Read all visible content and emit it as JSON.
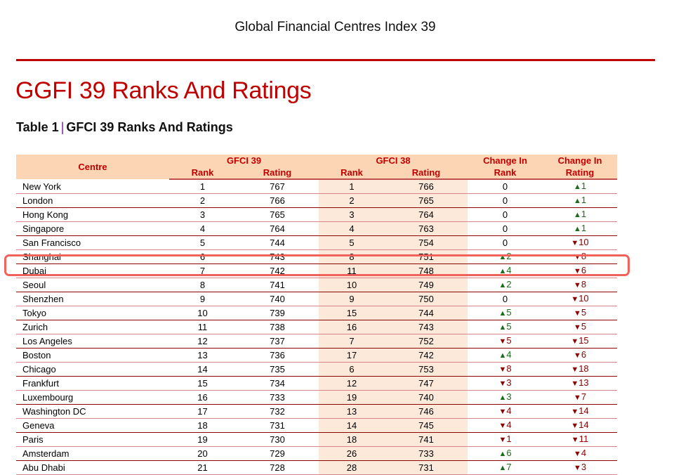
{
  "document": {
    "running_header": "Global Financial Centres Index 39",
    "page_title": "GGFI 39 Ranks And Ratings",
    "table_caption": {
      "label": "Table 1",
      "separator": "|",
      "title": "GFCI 39 Ranks And Ratings"
    }
  },
  "colors": {
    "accent_red": "#c00000",
    "header_fill": "#fcd5b5",
    "gfci38_fill": "#fde9d9",
    "up_green": "#1e6b1e",
    "down_red": "#8b0000",
    "highlight_outline": "#f0625a",
    "caption_separator": "#7b1fa2"
  },
  "table": {
    "headers": {
      "centre": "Centre",
      "gfci39": "GFCI 39",
      "gfci38": "GFCI 38",
      "rank": "Rank",
      "rating": "Rating",
      "change_in": "Change In",
      "change_rank": "Rank",
      "change_rating": "Rating"
    },
    "rows": [
      {
        "centre": "New York",
        "rank39": "1",
        "rating39": "767",
        "rank38": "1",
        "rating38": "766",
        "chg_rank": "0",
        "chg_rank_dir": "none",
        "chg_rating": "1",
        "chg_rating_dir": "up"
      },
      {
        "centre": "London",
        "rank39": "2",
        "rating39": "766",
        "rank38": "2",
        "rating38": "765",
        "chg_rank": "0",
        "chg_rank_dir": "none",
        "chg_rating": "1",
        "chg_rating_dir": "up"
      },
      {
        "centre": "Hong Kong",
        "rank39": "3",
        "rating39": "765",
        "rank38": "3",
        "rating38": "764",
        "chg_rank": "0",
        "chg_rank_dir": "none",
        "chg_rating": "1",
        "chg_rating_dir": "up"
      },
      {
        "centre": "Singapore",
        "rank39": "4",
        "rating39": "764",
        "rank38": "4",
        "rating38": "763",
        "chg_rank": "0",
        "chg_rank_dir": "none",
        "chg_rating": "1",
        "chg_rating_dir": "up"
      },
      {
        "centre": "San Francisco",
        "rank39": "5",
        "rating39": "744",
        "rank38": "5",
        "rating38": "754",
        "chg_rank": "0",
        "chg_rank_dir": "none",
        "chg_rating": "10",
        "chg_rating_dir": "down"
      },
      {
        "centre": "Shanghai",
        "rank39": "6",
        "rating39": "743",
        "rank38": "8",
        "rating38": "751",
        "chg_rank": "2",
        "chg_rank_dir": "up",
        "chg_rating": "8",
        "chg_rating_dir": "down"
      },
      {
        "centre": "Dubai",
        "rank39": "7",
        "rating39": "742",
        "rank38": "11",
        "rating38": "748",
        "chg_rank": "4",
        "chg_rank_dir": "up",
        "chg_rating": "6",
        "chg_rating_dir": "down",
        "highlighted": true
      },
      {
        "centre": "Seoul",
        "rank39": "8",
        "rating39": "741",
        "rank38": "10",
        "rating38": "749",
        "chg_rank": "2",
        "chg_rank_dir": "up",
        "chg_rating": "8",
        "chg_rating_dir": "down"
      },
      {
        "centre": "Shenzhen",
        "rank39": "9",
        "rating39": "740",
        "rank38": "9",
        "rating38": "750",
        "chg_rank": "0",
        "chg_rank_dir": "none",
        "chg_rating": "10",
        "chg_rating_dir": "down"
      },
      {
        "centre": "Tokyo",
        "rank39": "10",
        "rating39": "739",
        "rank38": "15",
        "rating38": "744",
        "chg_rank": "5",
        "chg_rank_dir": "up",
        "chg_rating": "5",
        "chg_rating_dir": "down"
      },
      {
        "centre": "Zurich",
        "rank39": "11",
        "rating39": "738",
        "rank38": "16",
        "rating38": "743",
        "chg_rank": "5",
        "chg_rank_dir": "up",
        "chg_rating": "5",
        "chg_rating_dir": "down"
      },
      {
        "centre": "Los Angeles",
        "rank39": "12",
        "rating39": "737",
        "rank38": "7",
        "rating38": "752",
        "chg_rank": "5",
        "chg_rank_dir": "down",
        "chg_rating": "15",
        "chg_rating_dir": "down"
      },
      {
        "centre": "Boston",
        "rank39": "13",
        "rating39": "736",
        "rank38": "17",
        "rating38": "742",
        "chg_rank": "4",
        "chg_rank_dir": "up",
        "chg_rating": "6",
        "chg_rating_dir": "down"
      },
      {
        "centre": "Chicago",
        "rank39": "14",
        "rating39": "735",
        "rank38": "6",
        "rating38": "753",
        "chg_rank": "8",
        "chg_rank_dir": "down",
        "chg_rating": "18",
        "chg_rating_dir": "down"
      },
      {
        "centre": "Frankfurt",
        "rank39": "15",
        "rating39": "734",
        "rank38": "12",
        "rating38": "747",
        "chg_rank": "3",
        "chg_rank_dir": "down",
        "chg_rating": "13",
        "chg_rating_dir": "down"
      },
      {
        "centre": "Luxembourg",
        "rank39": "16",
        "rating39": "733",
        "rank38": "19",
        "rating38": "740",
        "chg_rank": "3",
        "chg_rank_dir": "up",
        "chg_rating": "7",
        "chg_rating_dir": "down"
      },
      {
        "centre": "Washington DC",
        "rank39": "17",
        "rating39": "732",
        "rank38": "13",
        "rating38": "746",
        "chg_rank": "4",
        "chg_rank_dir": "down",
        "chg_rating": "14",
        "chg_rating_dir": "down"
      },
      {
        "centre": "Geneva",
        "rank39": "18",
        "rating39": "731",
        "rank38": "14",
        "rating38": "745",
        "chg_rank": "4",
        "chg_rank_dir": "down",
        "chg_rating": "14",
        "chg_rating_dir": "down"
      },
      {
        "centre": "Paris",
        "rank39": "19",
        "rating39": "730",
        "rank38": "18",
        "rating38": "741",
        "chg_rank": "1",
        "chg_rank_dir": "down",
        "chg_rating": "11",
        "chg_rating_dir": "down"
      },
      {
        "centre": "Amsterdam",
        "rank39": "20",
        "rating39": "729",
        "rank38": "26",
        "rating38": "733",
        "chg_rank": "6",
        "chg_rank_dir": "up",
        "chg_rating": "4",
        "chg_rating_dir": "down"
      },
      {
        "centre": "Abu Dhabi",
        "rank39": "21",
        "rating39": "728",
        "rank38": "28",
        "rating38": "731",
        "chg_rank": "7",
        "chg_rank_dir": "up",
        "chg_rating": "3",
        "chg_rating_dir": "down"
      }
    ]
  },
  "icons": {
    "up": "▲",
    "down": "▼"
  }
}
